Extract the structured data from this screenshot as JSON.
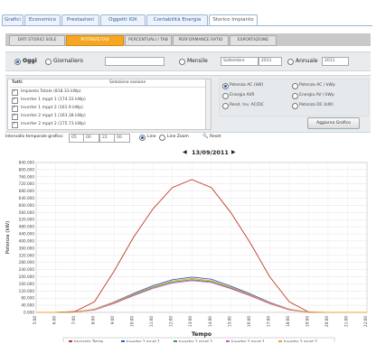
{
  "tabs": [
    "Grafici",
    "Economico",
    "Prestazioni",
    "Oggetti IOX",
    "Contabilità Energia",
    "Storico Impianto"
  ],
  "selected_tab": 5,
  "subtabs": [
    "DATI STORICI SOLE",
    "POTENZE/TAB",
    "PERCENTUALI / TAB",
    "PERFORMANCE RATIO",
    "ESPORTAZIONE"
  ],
  "selected_subtab": 1,
  "period": {
    "oggi": "Oggi",
    "giornaliero": "Giornaliero",
    "mensile": "Mensile",
    "month_value": "Settembre",
    "year_value": "2011",
    "annuale": "Annuale",
    "annual_value": "2011"
  },
  "list": {
    "header_left": "Tutti",
    "header_mid": "Selezione sezione",
    "items": [
      {
        "label": "Impianto Totale (818.33 kWp)",
        "checked": true
      },
      {
        "label": "Inverter 1 mppt 1 (174.33 kWp)",
        "checked": true
      },
      {
        "label": "Inverter 1 mppt 2 (161.9 kWp)",
        "checked": true
      },
      {
        "label": "Inverter 2 mppt 1 (163.38 kWp)",
        "checked": true
      },
      {
        "label": "Inverter 2 mppt 2 (175.73 kWp)",
        "checked": true
      }
    ]
  },
  "options": [
    {
      "label": "Potenza AC (kW)",
      "on": true
    },
    {
      "label": "Potenza AC / kWp",
      "on": false
    },
    {
      "label": "Energia AVR",
      "on": false
    },
    {
      "label": "Energia AV / kWp",
      "on": false
    },
    {
      "label": "Rend. Inv. AC/DC",
      "on": false
    },
    {
      "label": "Potenza DC (kW)",
      "on": false
    }
  ],
  "update_button": "Aggiorna Grafico",
  "interval": {
    "label": "Intervallo temporale grafico:",
    "from_h": "05",
    "from_m": "00",
    "to_h": "22",
    "to_m": "00",
    "line": "Line",
    "line_zoom": "Line Zoom",
    "reset": "Reset"
  },
  "date_label": "13/09/2011",
  "chart_data": {
    "type": "line",
    "xlabel": "Tempo",
    "ylabel": "Potenza (kW)",
    "ylim": [
      0,
      840
    ],
    "yticks": [
      "0.000",
      "40.000",
      "80.000",
      "120.000",
      "160.000",
      "200.000",
      "240.000",
      "280.000",
      "320.000",
      "360.000",
      "400.000",
      "440.000",
      "480.000",
      "520.000",
      "560.000",
      "600.000",
      "640.000",
      "680.000",
      "720.000",
      "760.000",
      "800.000",
      "840.000"
    ],
    "categories": [
      "5:00",
      "6:00",
      "7:00",
      "8:00",
      "9:00",
      "10:00",
      "11:00",
      "12:00",
      "13:00",
      "14:00",
      "15:00",
      "16:00",
      "17:00",
      "18:00",
      "19:00",
      "20:00",
      "21:00",
      "22:00"
    ],
    "series": [
      {
        "name": "Impianto Totale",
        "color": "#c0392b",
        "values": [
          0,
          0,
          5,
          60,
          230,
          420,
          580,
          700,
          745,
          700,
          560,
          390,
          200,
          60,
          2,
          0,
          0,
          0
        ]
      },
      {
        "name": "Inverter 1 mppt 1",
        "color": "#2e64c8",
        "values": [
          0,
          0,
          2,
          18,
          58,
          106,
          150,
          183,
          198,
          186,
          148,
          104,
          56,
          18,
          1,
          0,
          0,
          0
        ]
      },
      {
        "name": "Inverter 1 mppt 2",
        "color": "#3aa23a",
        "values": [
          0,
          0,
          2,
          15,
          52,
          97,
          139,
          170,
          183,
          172,
          137,
          95,
          51,
          15,
          1,
          0,
          0,
          0
        ]
      },
      {
        "name": "Inverter 2 mppt 1",
        "color": "#c85fc8",
        "values": [
          0,
          0,
          2,
          14,
          50,
          94,
          134,
          165,
          178,
          168,
          133,
          93,
          49,
          14,
          1,
          0,
          0,
          0
        ]
      },
      {
        "name": "Inverter 2 mppt 2",
        "color": "#f0a030",
        "values": [
          0,
          0,
          2,
          17,
          56,
          102,
          144,
          176,
          190,
          178,
          142,
          99,
          53,
          17,
          1,
          0,
          0,
          0
        ]
      }
    ],
    "grid": true,
    "legend": "bottom"
  }
}
